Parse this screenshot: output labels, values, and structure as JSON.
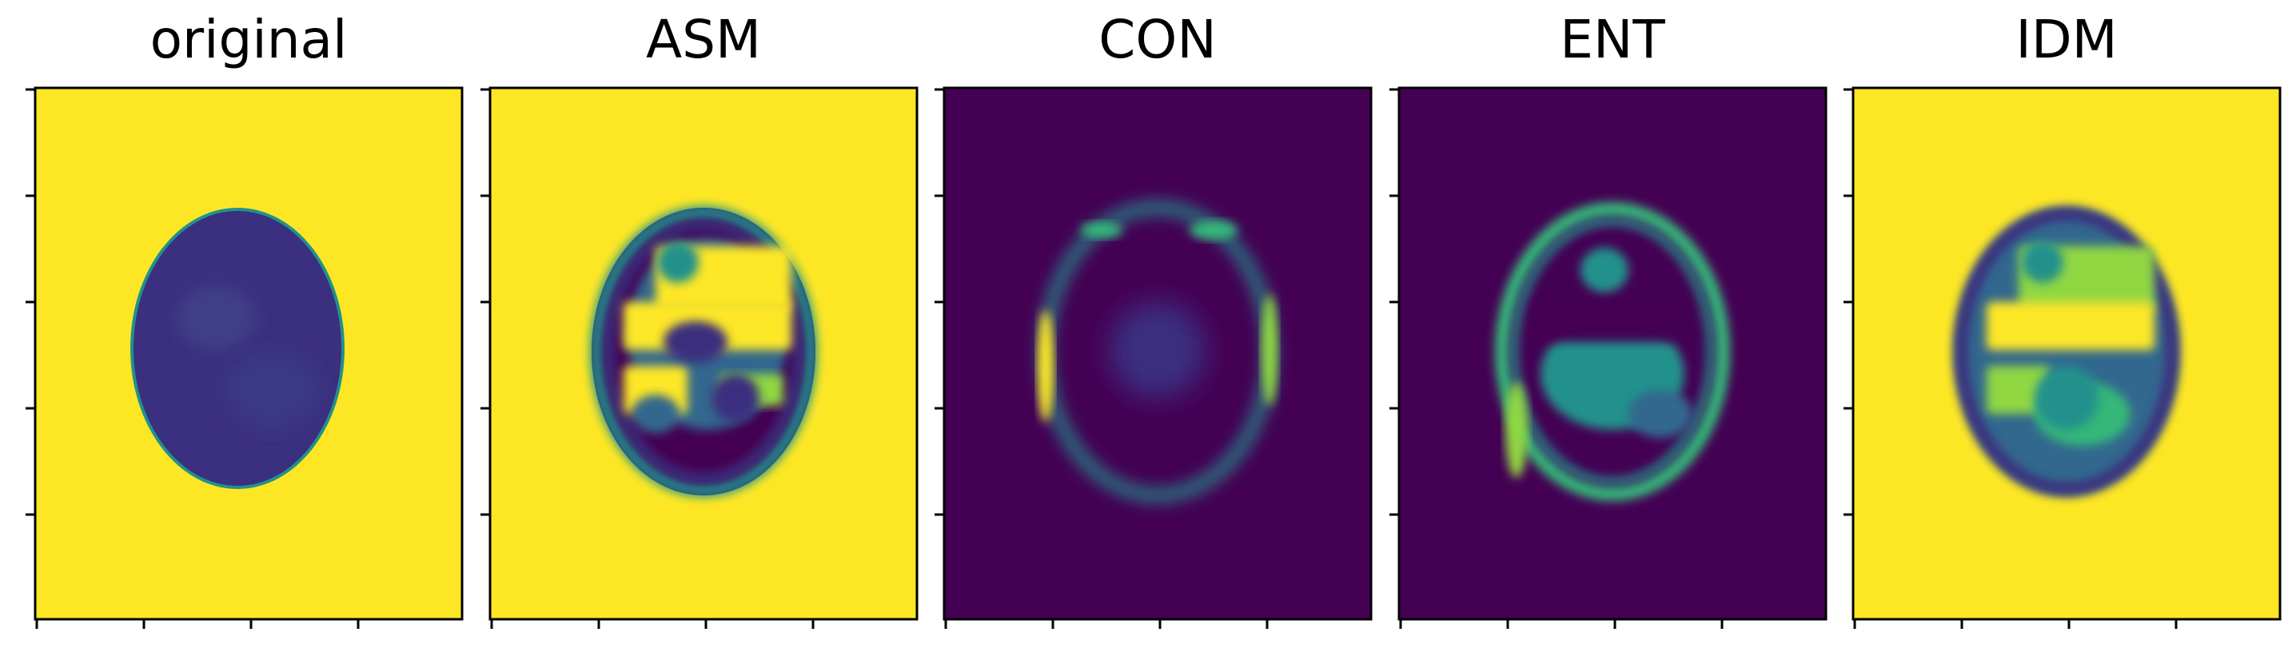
{
  "panels": [
    {
      "title": "original",
      "background": "#fde725",
      "variant": "original"
    },
    {
      "title": "ASM",
      "background": "#fde725",
      "variant": "asm"
    },
    {
      "title": "CON",
      "background": "#440154",
      "variant": "con"
    },
    {
      "title": "ENT",
      "background": "#440154",
      "variant": "ent"
    },
    {
      "title": "IDM",
      "background": "#fde725",
      "variant": "idm"
    }
  ],
  "colormap": {
    "name": "viridis",
    "dark_purple": "#440154",
    "indigo": "#3b2f7f",
    "blue": "#31688e",
    "teal": "#21918c",
    "green": "#35b779",
    "lime": "#90d743",
    "yellow": "#fde725"
  },
  "axes": {
    "ticks_shown": true,
    "tick_labels_shown": false,
    "y_ticks_per_panel": 6,
    "x_ticks_per_panel": 4
  }
}
